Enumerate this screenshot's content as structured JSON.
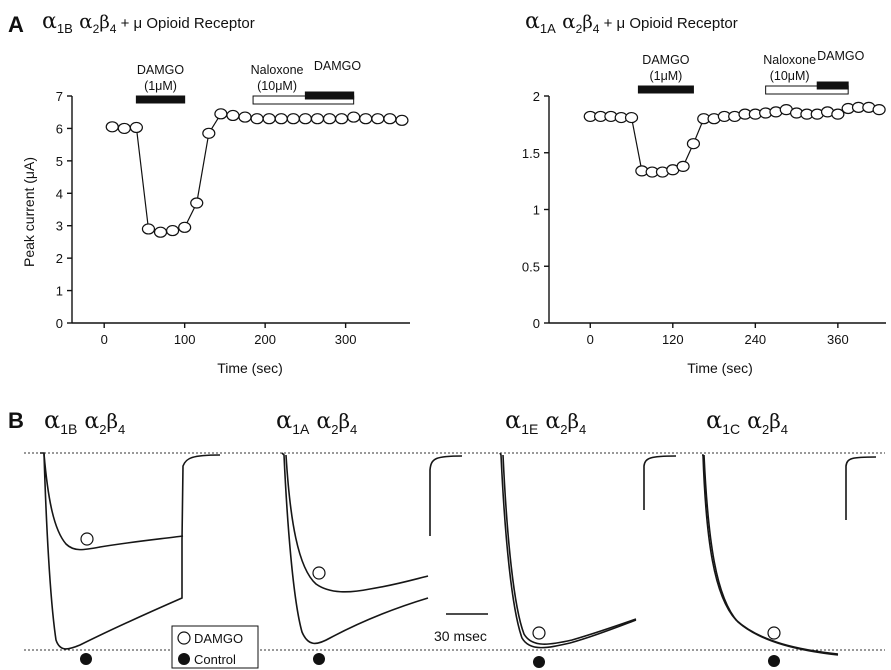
{
  "figure": {
    "panel_a_letter": "A",
    "panel_b_letter": "B"
  },
  "chart_data": [
    {
      "type": "scatter",
      "title_parts": [
        "α",
        "1B",
        " α",
        "2",
        "β",
        "4",
        " + μ Opioid Receptor"
      ],
      "xlabel": "Time (sec)",
      "ylabel": "Peak current (μA)",
      "xlim": [
        -40,
        380
      ],
      "ylim": [
        0,
        7
      ],
      "xticks": [
        0,
        100,
        200,
        300
      ],
      "yticks": [
        0,
        1,
        2,
        3,
        4,
        5,
        6,
        7
      ],
      "grid": false,
      "x": [
        10,
        25,
        40,
        55,
        70,
        85,
        100,
        115,
        130,
        145,
        160,
        175,
        190,
        205,
        220,
        235,
        250,
        265,
        280,
        295,
        310,
        325,
        340,
        355,
        370
      ],
      "y": [
        6.05,
        6.0,
        6.03,
        2.9,
        2.8,
        2.85,
        2.95,
        3.7,
        5.85,
        6.45,
        6.4,
        6.35,
        6.3,
        6.3,
        6.3,
        6.3,
        6.3,
        6.3,
        6.3,
        6.3,
        6.35,
        6.3,
        6.3,
        6.3,
        6.25
      ],
      "bars": [
        {
          "label_lines": [
            "DAMGO",
            "(1μM)"
          ],
          "start": 40,
          "end": 100,
          "fill": "#111111"
        },
        {
          "label_lines": [
            "Naloxone",
            "(10μM)"
          ],
          "start": 185,
          "end": 310,
          "fill": "#ffffff"
        },
        {
          "label_lines": [
            "DAMGO"
          ],
          "start": 250,
          "end": 310,
          "fill": "#111111"
        }
      ]
    },
    {
      "type": "scatter",
      "title_parts": [
        "α",
        "1A",
        " α",
        "2",
        "β",
        "4",
        " + μ Opioid Receptor"
      ],
      "xlabel": "Time (sec)",
      "ylabel": "",
      "xlim": [
        -60,
        430
      ],
      "ylim": [
        0,
        2
      ],
      "xticks": [
        0,
        120,
        240,
        360
      ],
      "yticks": [
        0,
        0.5,
        1,
        1.5,
        2
      ],
      "grid": false,
      "x": [
        0,
        15,
        30,
        45,
        60,
        75,
        90,
        105,
        120,
        135,
        150,
        165,
        180,
        195,
        210,
        225,
        240,
        255,
        270,
        285,
        300,
        315,
        330,
        345,
        360,
        375,
        390,
        405,
        420
      ],
      "y": [
        1.82,
        1.82,
        1.82,
        1.81,
        1.81,
        1.34,
        1.33,
        1.33,
        1.35,
        1.38,
        1.58,
        1.8,
        1.8,
        1.82,
        1.82,
        1.84,
        1.84,
        1.85,
        1.86,
        1.88,
        1.85,
        1.84,
        1.84,
        1.86,
        1.84,
        1.89,
        1.9,
        1.9,
        1.88
      ],
      "bars": [
        {
          "label_lines": [
            "DAMGO",
            "(1μM)"
          ],
          "start": 70,
          "end": 150,
          "fill": "#111111"
        },
        {
          "label_lines": [
            "Naloxone",
            "(10μM)"
          ],
          "start": 255,
          "end": 375,
          "fill": "#ffffff"
        },
        {
          "label_lines": [
            "DAMGO"
          ],
          "start": 330,
          "end": 375,
          "fill": "#111111"
        }
      ]
    },
    {
      "type": "line",
      "panel": "B",
      "scale_bar_label": "30 msec",
      "legend": [
        {
          "label": "DAMGO",
          "marker": "open-circle"
        },
        {
          "label": "Control",
          "marker": "filled-circle"
        }
      ],
      "traces": [
        {
          "name_parts": [
            "α",
            "1B",
            " α",
            "2",
            "β",
            "4"
          ],
          "damgo_inhibition_fraction": 0.57
        },
        {
          "name_parts": [
            "α",
            "1A",
            " α",
            "2",
            "β",
            "4"
          ],
          "damgo_inhibition_fraction": 0.44
        },
        {
          "name_parts": [
            "α",
            "1E",
            " α",
            "2",
            "β",
            "4"
          ],
          "damgo_inhibition_fraction": 0.03
        },
        {
          "name_parts": [
            "α",
            "1C",
            " α",
            "2",
            "β",
            "4"
          ],
          "damgo_inhibition_fraction": 0.0
        }
      ]
    }
  ]
}
